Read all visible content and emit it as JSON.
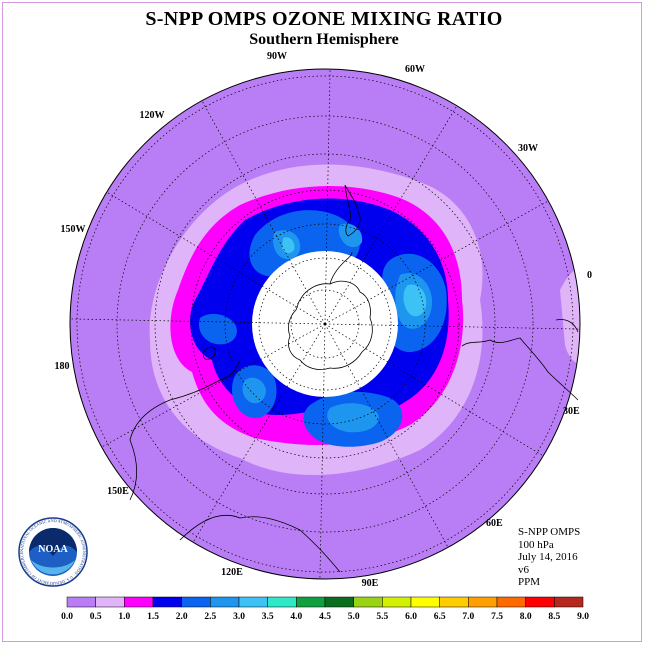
{
  "title": "S-NPP OMPS OZONE MIXING RATIO",
  "subtitle": "Southern Hemisphere",
  "longitude_labels": [
    "0",
    "30E",
    "60E",
    "90E",
    "120E",
    "150E",
    "180",
    "150W",
    "120W",
    "90W",
    "60W",
    "30W"
  ],
  "info": {
    "product": "S-NPP OMPS",
    "level": "100 hPa",
    "date": "July 14, 2016",
    "version": "v6",
    "units": "PPM"
  },
  "colorbar": {
    "ticks": [
      "0.0",
      "0.5",
      "1.0",
      "1.5",
      "2.0",
      "2.5",
      "3.0",
      "3.5",
      "4.0",
      "4.5",
      "5.0",
      "5.5",
      "6.0",
      "6.5",
      "7.0",
      "7.5",
      "8.0",
      "8.5",
      "9.0"
    ],
    "colors": [
      "#b97ef5",
      "#e0b4f8",
      "#ff00ff",
      "#0000ee",
      "#0a64f0",
      "#1e96f0",
      "#3cc2f5",
      "#2ee8c8",
      "#10a040",
      "#0b6e1e",
      "#9ad214",
      "#d2f000",
      "#ffff00",
      "#ffcc00",
      "#ffa000",
      "#ff6a00",
      "#ff0000",
      "#b4281e",
      "#8c5a3c"
    ]
  },
  "logo": {
    "text": "NOAA",
    "ring_text": "NATIONAL OCEANIC AND ATMOSPHERIC ADMINISTRATION · U.S. DEPARTMENT OF COMMERCE"
  }
}
